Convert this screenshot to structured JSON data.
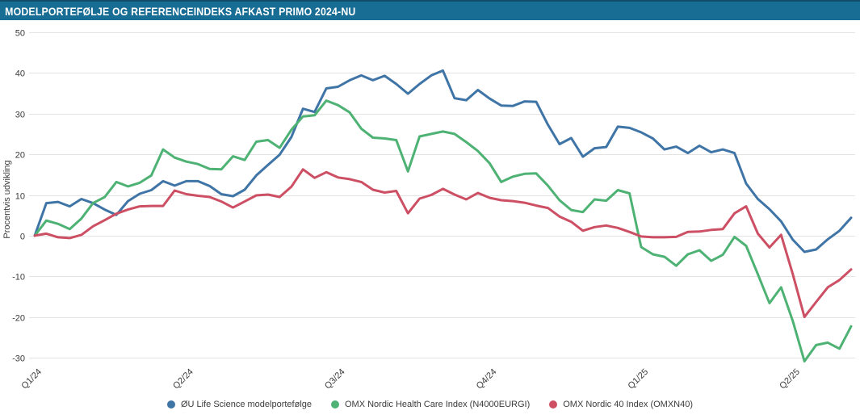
{
  "header": {
    "title": "MODELPORTEFØLJE OG REFERENCEINDEKS AFKAST PRIMO 2024-NU"
  },
  "y_axis": {
    "label": "Procentvis udvikling",
    "ticks": [
      50,
      40,
      30,
      20,
      10,
      0,
      -10,
      -20,
      -30
    ]
  },
  "x_axis": {
    "tick_labels": [
      "Q1/24",
      "Q2/24",
      "Q3/24",
      "Q4/24",
      "Q1/25",
      "Q2/25"
    ]
  },
  "legend": {
    "items": [
      {
        "label": "ØU Life Science modelportefølge",
        "color": "#3f74a6"
      },
      {
        "label": "OMX Nordic Health Care Index (N4000EURGI)",
        "color": "#4db273"
      },
      {
        "label": "OMX Nordic 40 Index (OMXN40)",
        "color": "#cc4f64"
      }
    ]
  },
  "colors": {
    "titlebar": "#186d95",
    "titlebar_edge": "#114e6b",
    "gridline": "#e3e3e3",
    "axis_text": "#3b3b3b"
  },
  "chart_data": {
    "type": "line",
    "title": "MODELPORTEFØLJE OG REFERENCEINDEKS AFKAST PRIMO 2024-NU",
    "ylabel": "Procentvis udvikling",
    "ylim": [
      -30,
      50
    ],
    "grid": true,
    "legend_position": "bottom",
    "x_unit": "weeks (approx. weekly samples from start of Q1/24)",
    "x_tick_labels": [
      "Q1/24",
      "Q2/24",
      "Q3/24",
      "Q4/24",
      "Q1/25",
      "Q2/25"
    ],
    "x_tick_weeks": [
      0,
      13,
      26,
      39,
      52,
      65
    ],
    "series": [
      {
        "name": "ØU Life Science modelportefølge",
        "color": "#3f74a6",
        "values": [
          0,
          8,
          8.3,
          7.2,
          9,
          8,
          6.4,
          5.1,
          8.5,
          10.3,
          11.2,
          13.4,
          12.3,
          13.4,
          13.4,
          12.2,
          10.2,
          9.7,
          11.3,
          14.8,
          17.4,
          19.9,
          24.2,
          31.2,
          30.4,
          36.2,
          36.6,
          38.2,
          39.4,
          38.2,
          39.3,
          37.3,
          34.9,
          37.3,
          39.4,
          40.6,
          33.8,
          33.3,
          35.8,
          33.7,
          32,
          31.9,
          33,
          32.9,
          27.3,
          22.5,
          24,
          19.4,
          21.5,
          21.8,
          26.8,
          26.5,
          25.4,
          23.9,
          21.2,
          21.9,
          20.3,
          22.1,
          20.5,
          21.2,
          20.3,
          12.8,
          9,
          6.5,
          3.5,
          -1,
          -4,
          -3.4,
          -0.9,
          1.2,
          4.4
        ]
      },
      {
        "name": "OMX Nordic Health Care Index (N4000EURGI)",
        "color": "#4db273",
        "values": [
          0,
          3.7,
          2.9,
          1.6,
          4.2,
          8,
          9.5,
          13.2,
          12.1,
          13,
          14.8,
          21.2,
          19.2,
          18.2,
          17.6,
          16.4,
          16.3,
          19.5,
          18.6,
          23.1,
          23.5,
          21.6,
          26,
          29.3,
          29.6,
          33.2,
          32.1,
          30.3,
          26.3,
          24.1,
          23.9,
          23.5,
          15.8,
          24.4,
          25,
          25.6,
          25,
          23,
          20.8,
          17.8,
          13.2,
          14.5,
          15.2,
          15.3,
          12.3,
          8.7,
          6.3,
          5.8,
          8.9,
          8.6,
          11.2,
          10.4,
          -2.8,
          -4.6,
          -5.2,
          -7.4,
          -4.6,
          -3.6,
          -6.2,
          -4.7,
          -0.3,
          -2.5,
          -9.5,
          -16.6,
          -12.7,
          -21,
          -30.9,
          -26.9,
          -26.3,
          -27.8,
          -22.3
        ]
      },
      {
        "name": "OMX Nordic 40 Index (OMXN40)",
        "color": "#cc4f64",
        "values": [
          0,
          0.5,
          -0.4,
          -0.6,
          0.2,
          2.3,
          3.8,
          5.4,
          6.4,
          7.2,
          7.3,
          7.3,
          11.1,
          10.2,
          9.8,
          9.5,
          8.4,
          6.9,
          8.4,
          9.9,
          10.1,
          9.5,
          12,
          16.3,
          14.2,
          15.6,
          14.3,
          13.9,
          13.2,
          11.3,
          10.6,
          11,
          5.5,
          9.1,
          10,
          11.5,
          10.1,
          8.9,
          10.5,
          9.3,
          8.7,
          8.5,
          8.1,
          7.4,
          6.8,
          4.7,
          3.4,
          1.2,
          2.1,
          2.5,
          1.9,
          0.9,
          -0.2,
          -0.4,
          -0.4,
          -0.3,
          0.9,
          1,
          1.4,
          1.6,
          5.5,
          7.2,
          0.5,
          -2.9,
          0.2,
          -9.5,
          -20,
          -16.3,
          -12.7,
          -10.9,
          -8.3
        ]
      }
    ]
  }
}
